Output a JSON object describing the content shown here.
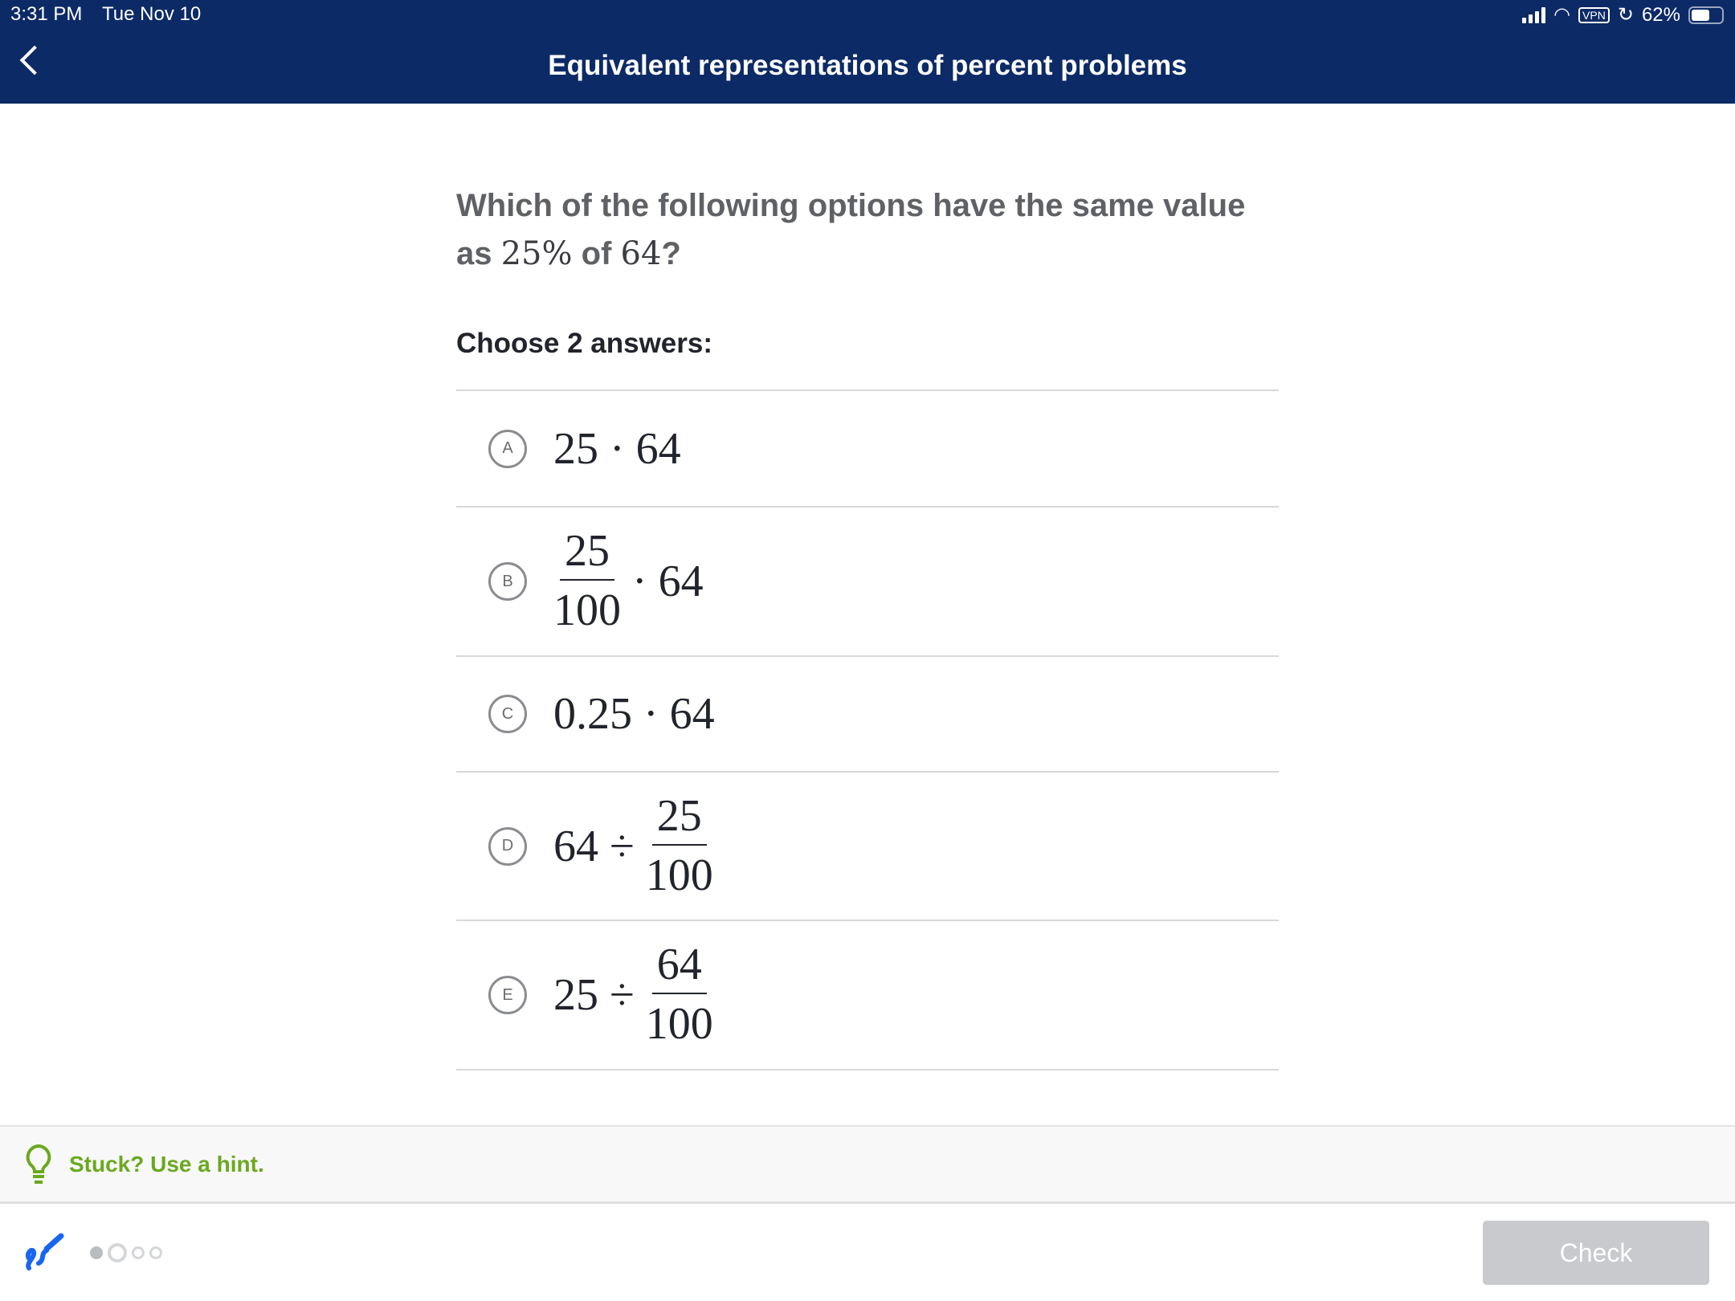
{
  "status": {
    "time": "3:31 PM",
    "date": "Tue Nov 10",
    "vpn": "VPN",
    "battery": "62%",
    "battery_level": 0.62
  },
  "header": {
    "title": "Equivalent representations of percent problems"
  },
  "question": {
    "text1": "Which of the following options have the same value as ",
    "m1": "25%",
    "text2": " of ",
    "m2": "64",
    "text3": "?"
  },
  "instruction": "Choose 2 answers:",
  "choices": [
    {
      "letter": "A",
      "a": "25",
      "op": "·",
      "b": "64"
    },
    {
      "letter": "B",
      "num": "25",
      "den": "100",
      "op": "·",
      "b": "64"
    },
    {
      "letter": "C",
      "a": "0.25",
      "op": "·",
      "b": "64"
    },
    {
      "letter": "D",
      "a": "64",
      "op": "÷",
      "num": "25",
      "den": "100"
    },
    {
      "letter": "E",
      "a": "25",
      "op": "÷",
      "num": "64",
      "den": "100"
    }
  ],
  "hint": "Stuck? Use a hint.",
  "check": "Check",
  "colors": {
    "header": "#0c2a66",
    "hint": "#6aa91e",
    "check": "#c8cacd",
    "pencil": "#1865f2"
  }
}
